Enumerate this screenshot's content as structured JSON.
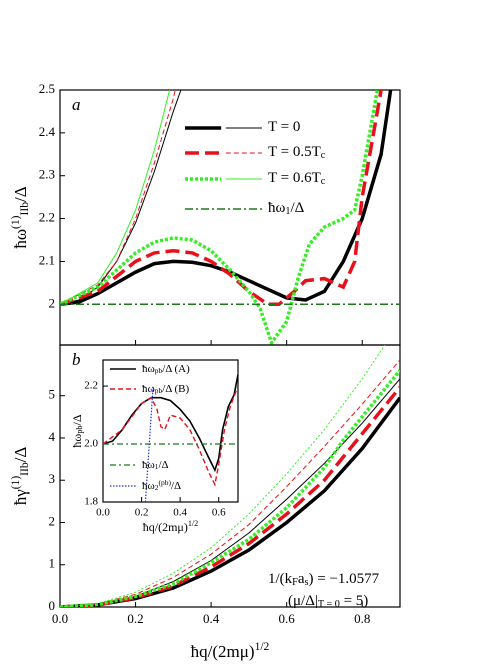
{
  "chart_data": [
    {
      "type": "line",
      "panel_label": "a",
      "ylabel": [
        {
          "t": "ħω"
        },
        {
          "sup": "(1)"
        },
        {
          "sub": "IIb"
        },
        {
          "t": "/Δ"
        }
      ],
      "xlim": [
        0,
        0.9
      ],
      "xticks": [
        0,
        0.2,
        0.4,
        0.6,
        0.8
      ],
      "ylim": [
        1.905,
        2.5
      ],
      "yticks": [
        2.0,
        2.1,
        2.2,
        2.3,
        2.4,
        2.5
      ],
      "series": [
        {
          "name": [
            {
              "t": "T = 0"
            }
          ],
          "color": "#000000",
          "width": 3.5,
          "dash": "none",
          "x": [
            0,
            0.05,
            0.1,
            0.15,
            0.2,
            0.25,
            0.3,
            0.35,
            0.4,
            0.45,
            0.5,
            0.55,
            0.6,
            0.65,
            0.7,
            0.75,
            0.8,
            0.85,
            0.875
          ],
          "values": [
            2.0,
            2.005,
            2.025,
            2.05,
            2.075,
            2.095,
            2.1,
            2.098,
            2.09,
            2.075,
            2.055,
            2.035,
            2.015,
            2.01,
            2.03,
            2.1,
            2.2,
            2.35,
            2.5
          ]
        },
        {
          "color": "#000000",
          "width": 1,
          "dash": "none",
          "x": [
            0,
            0.05,
            0.1,
            0.15,
            0.2,
            0.25,
            0.3,
            0.32
          ],
          "values": [
            2.0,
            2.01,
            2.04,
            2.1,
            2.19,
            2.31,
            2.45,
            2.5
          ]
        },
        {
          "name": [
            {
              "t": "T = 0.5T"
            },
            {
              "sub": "c"
            }
          ],
          "color": "#e8101a",
          "width": 3.5,
          "dash": "14,6",
          "x": [
            0,
            0.1,
            0.2,
            0.25,
            0.3,
            0.35,
            0.4,
            0.45,
            0.5,
            0.55,
            0.58,
            0.62,
            0.65,
            0.7,
            0.75,
            0.78,
            0.8,
            0.83,
            0.85
          ],
          "values": [
            2.0,
            2.03,
            2.1,
            2.12,
            2.125,
            2.12,
            2.1,
            2.07,
            2.03,
            2.0,
            2.0,
            2.03,
            2.055,
            2.06,
            2.04,
            2.1,
            2.25,
            2.4,
            2.5
          ]
        },
        {
          "color": "#e8101a",
          "width": 1,
          "dash": "5,3",
          "x": [
            0,
            0.1,
            0.15,
            0.2,
            0.25,
            0.3,
            0.305
          ],
          "values": [
            2.0,
            2.045,
            2.1,
            2.2,
            2.33,
            2.48,
            2.5
          ]
        },
        {
          "name": [
            {
              "t": "T = 0.6T"
            },
            {
              "sub": "c"
            }
          ],
          "color": "#33ee22",
          "width": 3.5,
          "dash": "3,2",
          "x": [
            0,
            0.1,
            0.2,
            0.25,
            0.3,
            0.35,
            0.4,
            0.45,
            0.5,
            0.53,
            0.56,
            0.6,
            0.63,
            0.66,
            0.7,
            0.75,
            0.78,
            0.8,
            0.83,
            0.84
          ],
          "values": [
            2.0,
            2.04,
            2.12,
            2.145,
            2.155,
            2.15,
            2.125,
            2.08,
            2.03,
            1.99,
            1.91,
            1.96,
            2.06,
            2.14,
            2.18,
            2.2,
            2.22,
            2.3,
            2.45,
            2.5
          ]
        },
        {
          "color": "#33ee22",
          "width": 1,
          "dash": "none",
          "x": [
            0,
            0.1,
            0.15,
            0.2,
            0.25,
            0.29
          ],
          "values": [
            2.0,
            2.05,
            2.12,
            2.22,
            2.36,
            2.5
          ]
        },
        {
          "name": [
            {
              "t": "ħω"
            },
            {
              "sub": "1"
            },
            {
              "t": "/Δ"
            }
          ],
          "color": "#1a7a1a",
          "width": 1.5,
          "dash": "8,3,2,3",
          "x": [
            0,
            0.9
          ],
          "values": [
            2.0,
            2.0
          ]
        }
      ]
    },
    {
      "type": "line",
      "panel_label": "b",
      "xlabel": [
        {
          "t": "ħq/(2mμ)"
        },
        {
          "sup": "1/2"
        }
      ],
      "ylabel": [
        {
          "t": "ħγ"
        },
        {
          "sup": "(1)"
        },
        {
          "sub": "IIb"
        },
        {
          "t": "/Δ"
        }
      ],
      "xlim": [
        0,
        0.9
      ],
      "xticks": [
        {
          "value": 0,
          "label": "0.0"
        },
        0.2,
        0.4,
        0.6,
        0.8
      ],
      "ylim": [
        0,
        6.2
      ],
      "yticks": [
        0,
        1,
        2,
        3,
        4,
        5
      ],
      "annotations": [
        [
          {
            "t": "1/(k"
          },
          {
            "sub": "F"
          },
          {
            "t": "a"
          },
          {
            "sub": "s"
          },
          {
            "t": ") = −1.0577"
          }
        ],
        [
          {
            "t": "(μ/Δ|"
          },
          {
            "sub": "T = 0"
          },
          {
            "t": " = 5)"
          }
        ]
      ],
      "series": [
        {
          "color": "#000000",
          "width": 3.5,
          "dash": "none",
          "x": [
            0,
            0.1,
            0.2,
            0.3,
            0.4,
            0.5,
            0.6,
            0.7,
            0.8,
            0.9
          ],
          "values": [
            0,
            0.05,
            0.2,
            0.45,
            0.85,
            1.35,
            2.0,
            2.75,
            3.75,
            4.95
          ]
        },
        {
          "color": "#000000",
          "width": 1,
          "dash": "none",
          "x": [
            0,
            0.1,
            0.2,
            0.3,
            0.4,
            0.5,
            0.6,
            0.7,
            0.8,
            0.9
          ],
          "values": [
            0,
            0.06,
            0.25,
            0.6,
            1.1,
            1.75,
            2.55,
            3.4,
            4.35,
            5.4
          ]
        },
        {
          "color": "#e8101a",
          "width": 3.5,
          "dash": "14,6",
          "x": [
            0,
            0.1,
            0.2,
            0.3,
            0.4,
            0.5,
            0.6,
            0.7,
            0.8,
            0.9
          ],
          "values": [
            0,
            0.05,
            0.22,
            0.5,
            0.95,
            1.5,
            2.2,
            3.0,
            4.1,
            5.2
          ]
        },
        {
          "color": "#e8101a",
          "width": 1,
          "dash": "5,3",
          "x": [
            0,
            0.1,
            0.2,
            0.3,
            0.4,
            0.5,
            0.6,
            0.7,
            0.8,
            0.9
          ],
          "values": [
            0,
            0.07,
            0.3,
            0.7,
            1.25,
            1.95,
            2.85,
            3.8,
            4.8,
            5.85
          ]
        },
        {
          "color": "#33ee22",
          "width": 3.5,
          "dash": "3,2",
          "x": [
            0,
            0.1,
            0.2,
            0.3,
            0.4,
            0.5,
            0.6,
            0.7,
            0.75,
            0.8,
            0.9
          ],
          "values": [
            0,
            0.06,
            0.25,
            0.55,
            1.05,
            1.6,
            2.35,
            3.3,
            3.95,
            4.5,
            5.6
          ]
        },
        {
          "color": "#33ee22",
          "width": 1,
          "dash": "2,2",
          "x": [
            0,
            0.1,
            0.2,
            0.3,
            0.4,
            0.5,
            0.6,
            0.7,
            0.8,
            0.86
          ],
          "values": [
            0,
            0.08,
            0.35,
            0.8,
            1.4,
            2.2,
            3.15,
            4.2,
            5.4,
            6.2
          ]
        }
      ]
    },
    {
      "type": "line",
      "xlabel": [
        {
          "t": "ħq/(2mμ)"
        },
        {
          "sup": "1/2"
        }
      ],
      "ylabel": [
        {
          "t": "ħω"
        },
        {
          "sub": "pb"
        },
        {
          "t": "/Δ"
        }
      ],
      "xlim": [
        0,
        0.7
      ],
      "xticks": [
        {
          "value": 0,
          "label": "0.0"
        },
        0.2,
        0.4,
        0.6
      ],
      "ylim": [
        1.8,
        2.29
      ],
      "yticks": [
        {
          "value": 1.8,
          "label": "1.8"
        },
        {
          "value": 2.0,
          "label": "2.0"
        },
        2.2
      ],
      "series": [
        {
          "name": [
            {
              "t": "ħω"
            },
            {
              "sub": "pb"
            },
            {
              "t": "/Δ  (A)"
            }
          ],
          "color": "#000000",
          "width": 1.6,
          "dash": "none",
          "x": [
            0,
            0.05,
            0.1,
            0.15,
            0.2,
            0.25,
            0.3,
            0.35,
            0.4,
            0.45,
            0.5,
            0.55,
            0.58,
            0.6,
            0.62,
            0.65,
            0.68,
            0.7
          ],
          "values": [
            2.0,
            2.01,
            2.05,
            2.1,
            2.14,
            2.16,
            2.16,
            2.15,
            2.12,
            2.08,
            2.02,
            1.95,
            1.91,
            1.95,
            2.05,
            2.13,
            2.17,
            2.24
          ]
        },
        {
          "name": [
            {
              "t": "ħω"
            },
            {
              "sub": "pb"
            },
            {
              "t": "/Δ  (B)"
            }
          ],
          "color": "#e8101a",
          "width": 1.4,
          "dash": "5,3",
          "x": [
            0,
            0.1,
            0.2,
            0.25,
            0.28,
            0.3,
            0.32,
            0.35,
            0.4,
            0.45,
            0.5,
            0.55,
            0.58,
            0.6,
            0.63,
            0.66,
            0.7
          ],
          "values": [
            2.0,
            2.05,
            2.14,
            2.16,
            2.12,
            2.06,
            2.05,
            2.1,
            2.09,
            2.05,
            1.98,
            1.9,
            1.86,
            1.93,
            2.05,
            2.13,
            2.2
          ]
        },
        {
          "name": [
            {
              "t": "ħω"
            },
            {
              "sub": "1"
            },
            {
              "t": "/Δ"
            }
          ],
          "color": "#1a7a1a",
          "width": 1.2,
          "dash": "6,3,2,3",
          "x": [
            0,
            0.7
          ],
          "values": [
            2.0,
            2.0
          ]
        },
        {
          "name": [
            {
              "t": "ħω"
            },
            {
              "sub": "2"
            },
            {
              "sup": "(pb)"
            },
            {
              "t": "/Δ"
            }
          ],
          "color": "#2233cc",
          "width": 1.2,
          "dash": "1.5,1.5",
          "x": [
            0.22,
            0.24,
            0.26
          ],
          "values": [
            1.8,
            2.0,
            2.2
          ]
        }
      ]
    }
  ]
}
